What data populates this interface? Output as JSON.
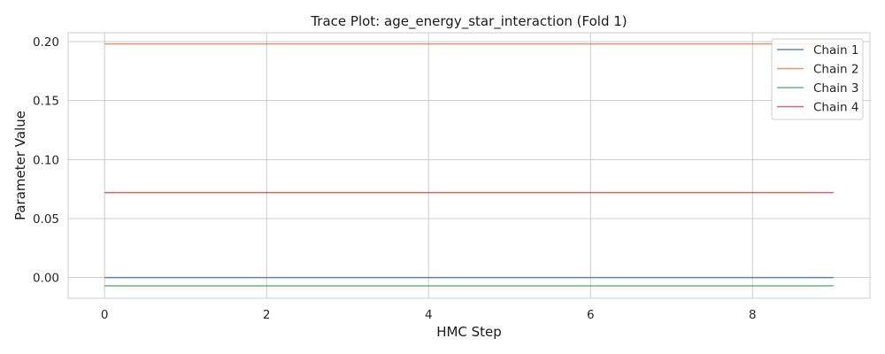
{
  "chart_data": {
    "type": "line",
    "title": "Trace Plot: age_energy_star_interaction (Fold 1)",
    "xlabel": "HMC Step",
    "ylabel": "Parameter Value",
    "x": [
      0,
      1,
      2,
      3,
      4,
      5,
      6,
      7,
      8,
      9
    ],
    "xlim": [
      -0.45,
      9.45
    ],
    "ylim": [
      -0.0175,
      0.2075
    ],
    "xticks": [
      0,
      2,
      4,
      6,
      8
    ],
    "xtick_labels": [
      "0",
      "2",
      "4",
      "6",
      "8"
    ],
    "yticks": [
      0.0,
      0.05,
      0.1,
      0.15,
      0.2
    ],
    "ytick_labels": [
      "0.00",
      "0.05",
      "0.10",
      "0.15",
      "0.20"
    ],
    "grid": true,
    "legend_position": "top-right",
    "series": [
      {
        "name": "Chain 1",
        "color": "#4c72b0",
        "values": [
          0.0,
          0.0,
          0.0,
          0.0,
          0.0,
          0.0,
          0.0,
          0.0,
          0.0,
          0.0
        ]
      },
      {
        "name": "Chain 2",
        "color": "#dd8452",
        "values": [
          0.198,
          0.198,
          0.198,
          0.198,
          0.198,
          0.198,
          0.198,
          0.198,
          0.198,
          0.198
        ]
      },
      {
        "name": "Chain 3",
        "color": "#55a868",
        "values": [
          -0.007,
          -0.007,
          -0.007,
          -0.007,
          -0.007,
          -0.007,
          -0.007,
          -0.007,
          -0.007,
          -0.007
        ]
      },
      {
        "name": "Chain 4",
        "color": "#c44e52",
        "values": [
          0.072,
          0.072,
          0.072,
          0.072,
          0.072,
          0.072,
          0.072,
          0.072,
          0.072,
          0.072
        ]
      }
    ]
  }
}
